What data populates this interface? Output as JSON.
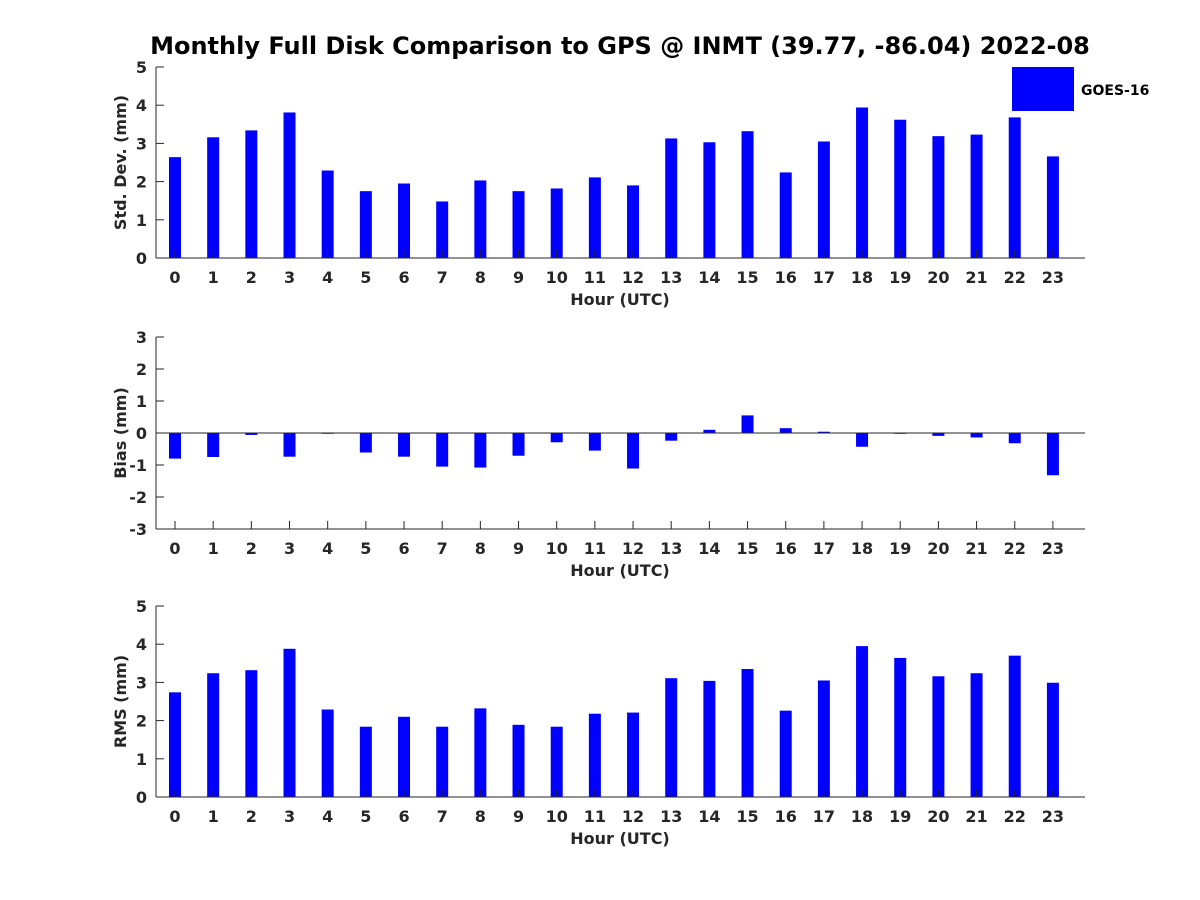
{
  "chart_data": [
    {
      "type": "bar",
      "title": "Monthly Full Disk Comparison to GPS @ INMT (39.77, -86.04) 2022-08",
      "xlabel": "Hour (UTC)",
      "ylabel": "Std. Dev. (mm)",
      "ylim": [
        0,
        5
      ],
      "yticks": [
        "0",
        "1",
        "2",
        "3",
        "4",
        "5"
      ],
      "categories": [
        "0",
        "1",
        "2",
        "3",
        "4",
        "5",
        "6",
        "7",
        "8",
        "9",
        "10",
        "11",
        "12",
        "13",
        "14",
        "15",
        "16",
        "17",
        "18",
        "19",
        "20",
        "21",
        "22",
        "23"
      ],
      "series": [
        {
          "name": "GOES-16",
          "color": "#0000ff",
          "values": [
            2.64,
            3.16,
            3.34,
            3.81,
            2.29,
            1.75,
            1.95,
            1.48,
            2.03,
            1.75,
            1.82,
            2.11,
            1.9,
            3.13,
            3.03,
            3.32,
            2.24,
            3.05,
            3.94,
            3.62,
            3.19,
            3.23,
            3.68,
            2.66
          ]
        }
      ],
      "legend": {
        "position": "top-right",
        "entries": [
          "GOES-16"
        ]
      },
      "grid": false
    },
    {
      "type": "bar",
      "title": "",
      "xlabel": "Hour (UTC)",
      "ylabel": "Bias (mm)",
      "ylim": [
        -3,
        3
      ],
      "yticks": [
        "-3",
        "-2",
        "-1",
        "0",
        "1",
        "2",
        "3"
      ],
      "categories": [
        "0",
        "1",
        "2",
        "3",
        "4",
        "5",
        "6",
        "7",
        "8",
        "9",
        "10",
        "11",
        "12",
        "13",
        "14",
        "15",
        "16",
        "17",
        "18",
        "19",
        "20",
        "21",
        "22",
        "23"
      ],
      "series": [
        {
          "name": "GOES-16",
          "color": "#0000ff",
          "values": [
            -0.8,
            -0.75,
            -0.06,
            -0.74,
            -0.02,
            -0.61,
            -0.74,
            -1.05,
            -1.08,
            -0.71,
            -0.29,
            -0.55,
            -1.11,
            -0.24,
            0.1,
            0.55,
            0.15,
            0.04,
            -0.43,
            -0.02,
            -0.09,
            -0.14,
            -0.32,
            -1.32
          ]
        }
      ],
      "grid": false
    },
    {
      "type": "bar",
      "title": "",
      "xlabel": "Hour (UTC)",
      "ylabel": "RMS (mm)",
      "ylim": [
        0,
        5
      ],
      "yticks": [
        "0",
        "1",
        "2",
        "3",
        "4",
        "5"
      ],
      "categories": [
        "0",
        "1",
        "2",
        "3",
        "4",
        "5",
        "6",
        "7",
        "8",
        "9",
        "10",
        "11",
        "12",
        "13",
        "14",
        "15",
        "16",
        "17",
        "18",
        "19",
        "20",
        "21",
        "22",
        "23"
      ],
      "series": [
        {
          "name": "GOES-16",
          "color": "#0000ff",
          "values": [
            2.74,
            3.24,
            3.32,
            3.88,
            2.29,
            1.84,
            2.1,
            1.84,
            2.32,
            1.89,
            1.84,
            2.18,
            2.21,
            3.11,
            3.04,
            3.35,
            2.26,
            3.05,
            3.95,
            3.64,
            3.16,
            3.24,
            3.7,
            2.99
          ]
        }
      ],
      "grid": false
    }
  ]
}
